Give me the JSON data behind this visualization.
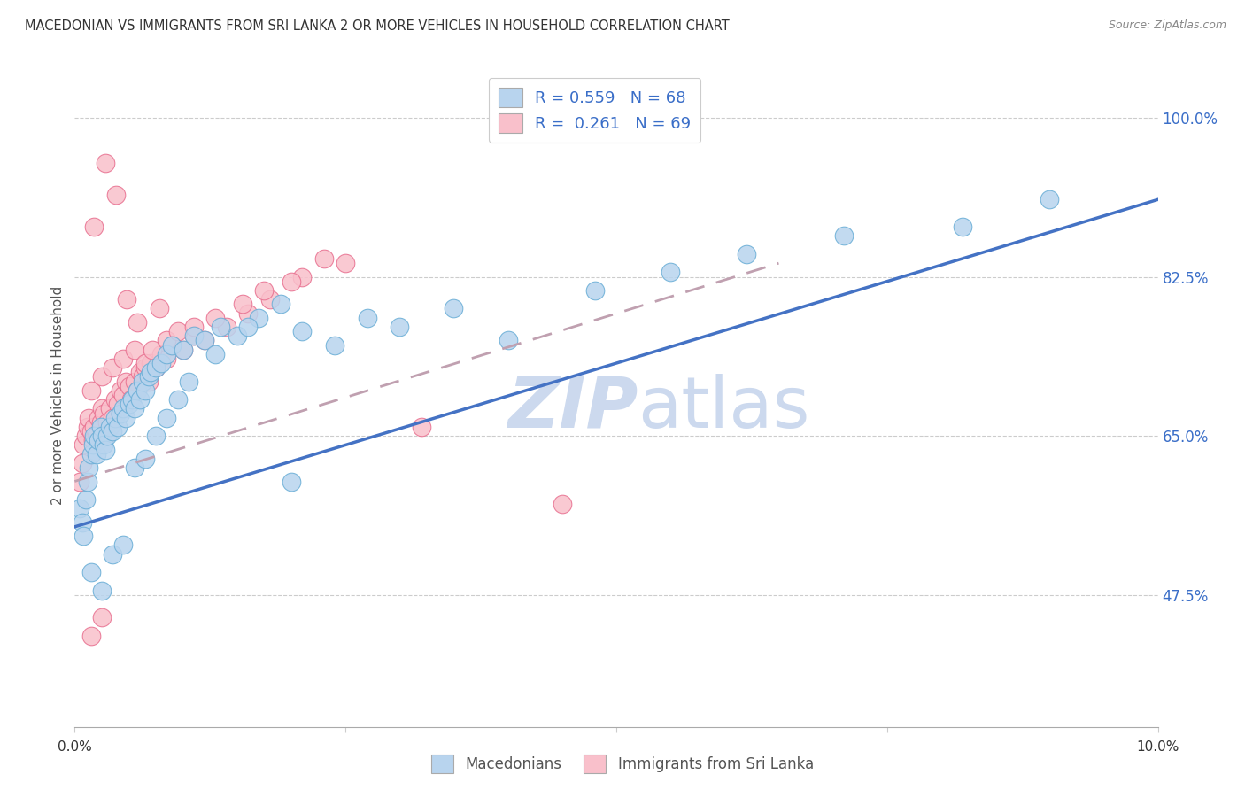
{
  "title": "MACEDONIAN VS IMMIGRANTS FROM SRI LANKA 2 OR MORE VEHICLES IN HOUSEHOLD CORRELATION CHART",
  "source": "Source: ZipAtlas.com",
  "ylabel": "2 or more Vehicles in Household",
  "yticks": [
    47.5,
    65.0,
    82.5,
    100.0
  ],
  "ytick_labels": [
    "47.5%",
    "65.0%",
    "82.5%",
    "100.0%"
  ],
  "xmin": 0.0,
  "xmax": 10.0,
  "ymin": 33.0,
  "ymax": 106.0,
  "legend1_label": "Macedonians",
  "legend2_label": "Immigrants from Sri Lanka",
  "R1": 0.559,
  "N1": 68,
  "R2": 0.261,
  "N2": 69,
  "color_blue_fill": "#b8d4ee",
  "color_blue_edge": "#6aaed6",
  "color_pink_fill": "#f9c0cb",
  "color_pink_edge": "#e87090",
  "color_line_blue": "#4472c4",
  "color_line_pink": "#c0a0b0",
  "watermark_color": "#ccd9ee",
  "blue_line_x0": 0.0,
  "blue_line_y0": 55.0,
  "blue_line_x1": 10.0,
  "blue_line_y1": 91.0,
  "pink_line_x0": 0.0,
  "pink_line_y0": 60.0,
  "pink_line_x1": 6.5,
  "pink_line_y1": 84.0,
  "blue_x": [
    0.05,
    0.07,
    0.08,
    0.1,
    0.12,
    0.13,
    0.15,
    0.17,
    0.18,
    0.2,
    0.22,
    0.24,
    0.25,
    0.27,
    0.28,
    0.3,
    0.32,
    0.35,
    0.37,
    0.4,
    0.42,
    0.45,
    0.47,
    0.5,
    0.53,
    0.55,
    0.58,
    0.6,
    0.63,
    0.65,
    0.68,
    0.7,
    0.75,
    0.8,
    0.85,
    0.9,
    1.0,
    1.1,
    1.2,
    1.35,
    1.5,
    1.7,
    1.9,
    2.1,
    2.4,
    2.7,
    3.0,
    3.5,
    4.0,
    4.8,
    5.5,
    6.2,
    7.1,
    8.2,
    9.0,
    0.15,
    0.25,
    0.35,
    0.45,
    0.55,
    0.65,
    0.75,
    0.85,
    0.95,
    1.05,
    1.3,
    1.6,
    2.0
  ],
  "blue_y": [
    57.0,
    55.5,
    54.0,
    58.0,
    60.0,
    61.5,
    63.0,
    64.0,
    65.0,
    63.0,
    64.5,
    66.0,
    65.0,
    64.0,
    63.5,
    65.0,
    66.0,
    65.5,
    67.0,
    66.0,
    67.5,
    68.0,
    67.0,
    68.5,
    69.0,
    68.0,
    70.0,
    69.0,
    71.0,
    70.0,
    71.5,
    72.0,
    72.5,
    73.0,
    74.0,
    75.0,
    74.5,
    76.0,
    75.5,
    77.0,
    76.0,
    78.0,
    79.5,
    76.5,
    75.0,
    78.0,
    77.0,
    79.0,
    75.5,
    81.0,
    83.0,
    85.0,
    87.0,
    88.0,
    91.0,
    50.0,
    48.0,
    52.0,
    53.0,
    61.5,
    62.5,
    65.0,
    67.0,
    69.0,
    71.0,
    74.0,
    77.0,
    60.0
  ],
  "pink_x": [
    0.05,
    0.07,
    0.08,
    0.1,
    0.12,
    0.13,
    0.15,
    0.17,
    0.18,
    0.2,
    0.22,
    0.24,
    0.25,
    0.27,
    0.28,
    0.3,
    0.32,
    0.35,
    0.37,
    0.4,
    0.42,
    0.45,
    0.47,
    0.5,
    0.52,
    0.55,
    0.58,
    0.6,
    0.63,
    0.65,
    0.68,
    0.7,
    0.75,
    0.8,
    0.85,
    0.9,
    1.0,
    1.1,
    1.2,
    1.4,
    1.6,
    1.8,
    2.1,
    2.5,
    3.2,
    0.15,
    0.25,
    0.35,
    0.45,
    0.55,
    0.65,
    0.72,
    0.85,
    0.95,
    1.1,
    1.3,
    1.55,
    1.75,
    2.0,
    2.3,
    0.18,
    0.28,
    0.38,
    0.48,
    0.58,
    0.78,
    4.5,
    0.15,
    0.25
  ],
  "pink_y": [
    60.0,
    62.0,
    64.0,
    65.0,
    66.0,
    67.0,
    65.5,
    64.5,
    66.0,
    65.0,
    67.0,
    66.5,
    68.0,
    67.5,
    65.0,
    66.5,
    68.0,
    67.0,
    69.0,
    68.5,
    70.0,
    69.5,
    71.0,
    70.5,
    69.0,
    71.0,
    70.0,
    72.0,
    71.5,
    72.5,
    71.0,
    73.0,
    72.5,
    74.0,
    73.5,
    75.0,
    74.5,
    76.0,
    75.5,
    77.0,
    78.5,
    80.0,
    82.5,
    84.0,
    66.0,
    70.0,
    71.5,
    72.5,
    73.5,
    74.5,
    73.0,
    74.5,
    75.5,
    76.5,
    77.0,
    78.0,
    79.5,
    81.0,
    82.0,
    84.5,
    88.0,
    95.0,
    91.5,
    80.0,
    77.5,
    79.0,
    57.5,
    43.0,
    45.0
  ]
}
